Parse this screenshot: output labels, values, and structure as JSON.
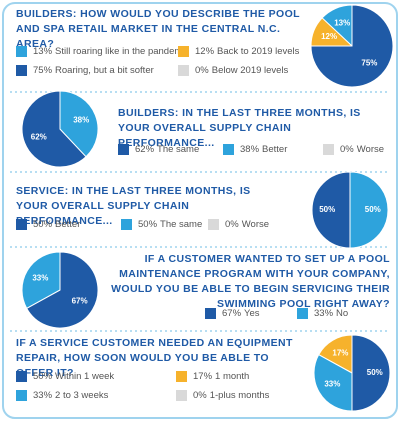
{
  "chart_data": [
    {
      "type": "pie",
      "title": "BUILDERS: HOW WOULD YOU DESCRIBE THE POOL AND SPA RETAIL MARKET IN THE CENTRAL N.C. AREA?",
      "categories": [
        "Still roaring like in the pandemic",
        "Back to 2019 levels",
        "Roaring, but a bit softer",
        "Below 2019 levels"
      ],
      "values": [
        13,
        12,
        75,
        0
      ],
      "value_labels": [
        "13%",
        "12%",
        "75%",
        "0%"
      ],
      "colors": [
        "#2ea3dc",
        "#f6b22c",
        "#1f5aa6",
        "#d9d9d9"
      ]
    },
    {
      "type": "pie",
      "title": "BUILDERS: IN THE LAST THREE MONTHS, IS YOUR OVERALL SUPPLY CHAIN PERFORMANCE...",
      "categories": [
        "The same",
        "Better",
        "Worse"
      ],
      "values": [
        62,
        38,
        0
      ],
      "value_labels": [
        "62%",
        "38%",
        "0%"
      ],
      "colors": [
        "#1f5aa6",
        "#2ea3dc",
        "#d9d9d9"
      ]
    },
    {
      "type": "pie",
      "title": "SERVICE: IN THE LAST THREE MONTHS, IS YOUR OVERALL SUPPLY CHAIN PERFORMANCE...",
      "categories": [
        "Better",
        "The same",
        "Worse"
      ],
      "values": [
        50,
        50,
        0
      ],
      "value_labels": [
        "50%",
        "50%",
        "0%"
      ],
      "colors": [
        "#1f5aa6",
        "#2ea3dc",
        "#d9d9d9"
      ]
    },
    {
      "type": "pie",
      "title": "IF A CUSTOMER WANTED TO SET UP A POOL MAINTENANCE PROGRAM WITH YOUR COMPANY, WOULD YOU BE ABLE TO BEGIN SERVICING THEIR SWIMMING POOL RIGHT AWAY?",
      "categories": [
        "Yes",
        "No"
      ],
      "values": [
        67,
        33
      ],
      "value_labels": [
        "67%",
        "33%"
      ],
      "colors": [
        "#1f5aa6",
        "#2ea3dc"
      ]
    },
    {
      "type": "pie",
      "title": "IF A SERVICE CUSTOMER NEEDED AN EQUIPMENT REPAIR, HOW SOON WOULD YOU BE ABLE TO OFFER IT?",
      "categories": [
        "Within 1 week",
        "1 month",
        "2 to 3 weeks",
        "1-plus months"
      ],
      "values": [
        50,
        17,
        33,
        0
      ],
      "value_labels": [
        "50%",
        "17%",
        "33%",
        "0%"
      ],
      "colors": [
        "#1f5aa6",
        "#f6b22c",
        "#2ea3dc",
        "#d9d9d9"
      ]
    }
  ]
}
